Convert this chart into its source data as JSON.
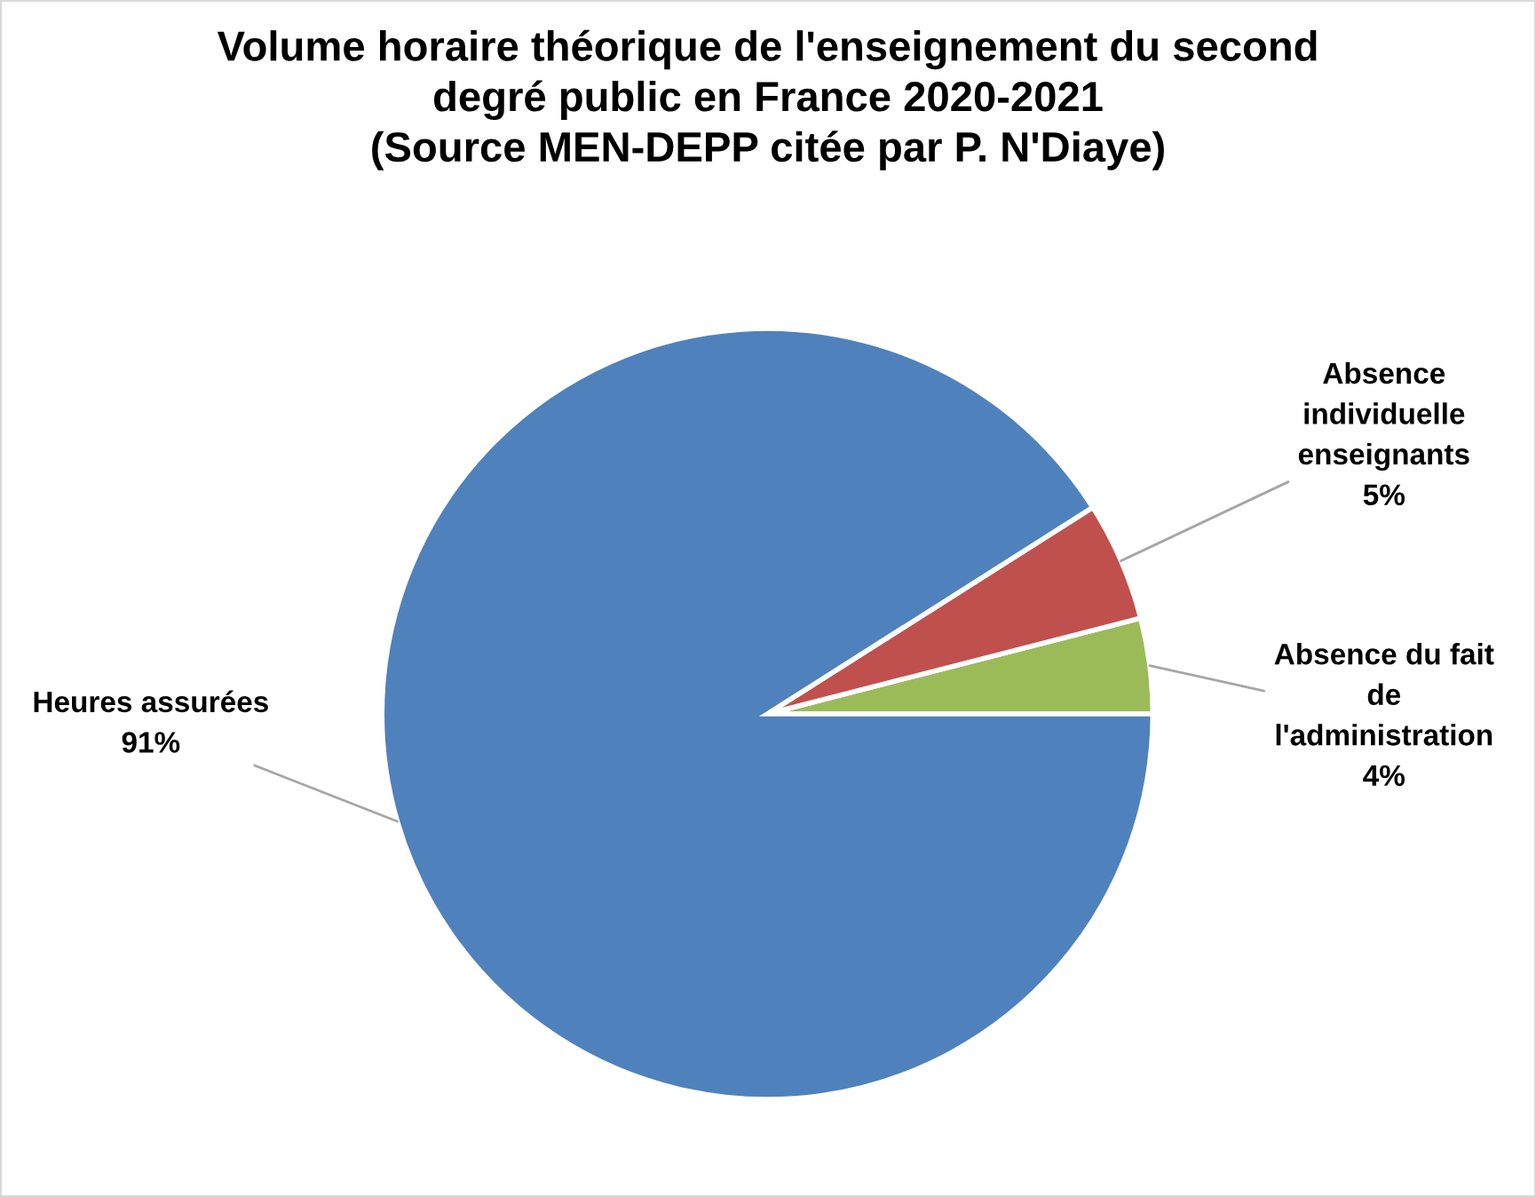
{
  "chart_data": {
    "type": "pie",
    "title": "Volume horaire théorique de l'enseignement du second\ndegré public en France 2020-2021\n(Source MEN-DEPP citée par P. N'Diaye)",
    "categories": [
      "Absence du fait\nde\nl'administration",
      "Absence\nindividuelle\nenseignants",
      "Heures assurées"
    ],
    "values": [
      4,
      5,
      91
    ],
    "colors": [
      "#9bbb59",
      "#c0504d",
      "#4f81bd"
    ],
    "value_labels": [
      "4%",
      "5%",
      "91%"
    ]
  }
}
